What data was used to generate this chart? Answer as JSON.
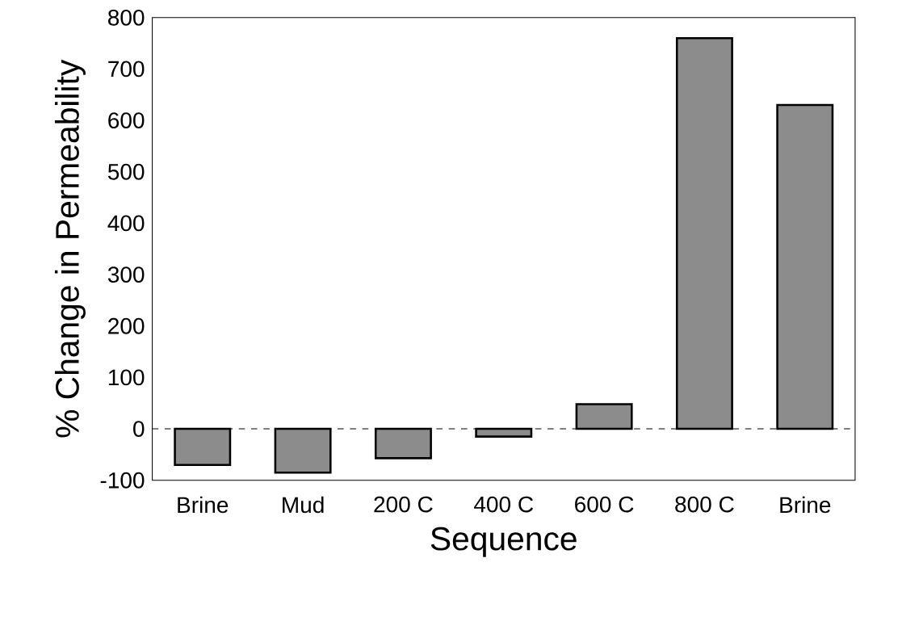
{
  "chart_data": {
    "type": "bar",
    "xlabel": "Sequence",
    "ylabel": "% Change in Permeability",
    "categories": [
      "Brine",
      "Mud",
      "200 C",
      "400 C",
      "600 C",
      "800 C",
      "Brine"
    ],
    "values": [
      -70,
      -85,
      -57,
      -15,
      48,
      760,
      630
    ],
    "color": "#8c8c8c",
    "ylim": [
      -100,
      800
    ],
    "yticks": [
      -100,
      0,
      100,
      200,
      300,
      400,
      500,
      600,
      700,
      800
    ],
    "ref_lines": [
      {
        "axis": "y",
        "value": 0,
        "line_style": "dashed"
      }
    ],
    "grid": false
  }
}
